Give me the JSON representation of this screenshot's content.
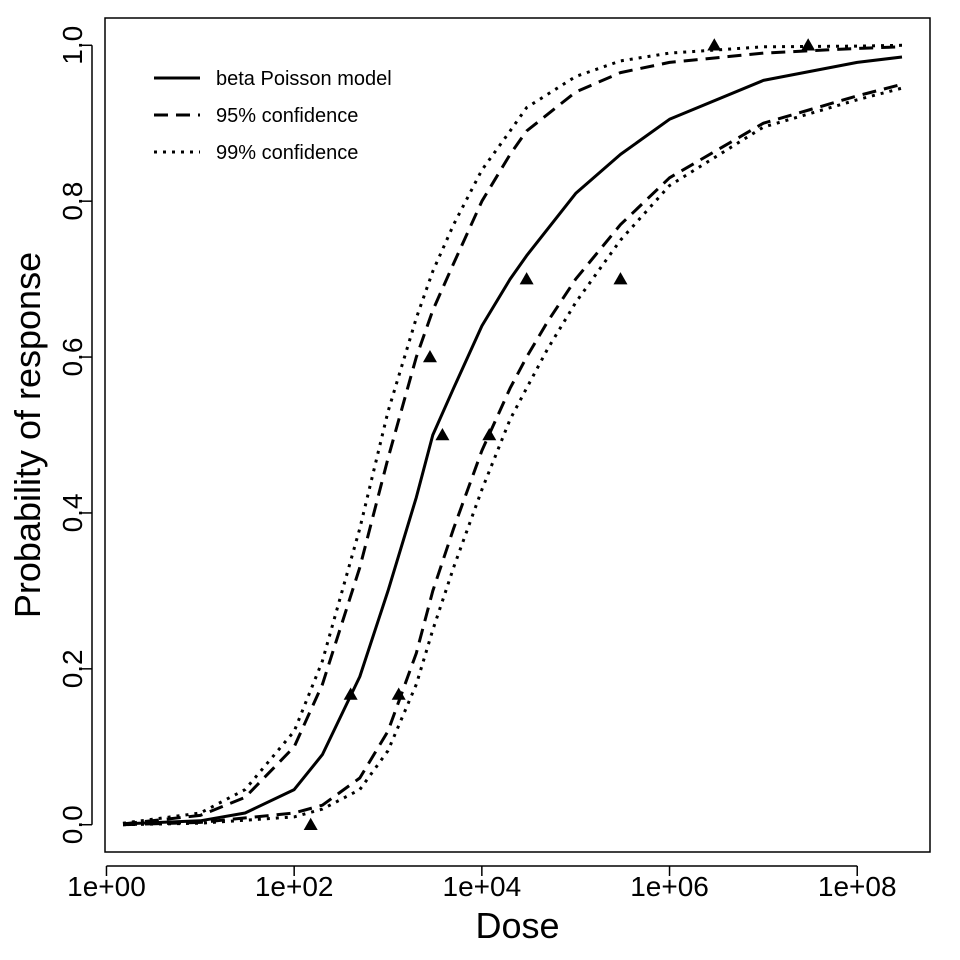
{
  "chart_data": {
    "type": "line",
    "title": "",
    "xlabel": "Dose",
    "ylabel": "Probability of response",
    "x_scale": "log10",
    "xlim": [
      1.5,
      300000000
    ],
    "ylim": [
      -0.035,
      1.035
    ],
    "x_ticks": [
      {
        "value": 1,
        "label": "1e+00"
      },
      {
        "value": 100,
        "label": "1e+02"
      },
      {
        "value": 10000,
        "label": "1e+04"
      },
      {
        "value": 1000000,
        "label": "1e+06"
      },
      {
        "value": 100000000,
        "label": "1e+08"
      }
    ],
    "y_ticks": [
      {
        "value": 0.0,
        "label": "0.0"
      },
      {
        "value": 0.2,
        "label": "0.2"
      },
      {
        "value": 0.4,
        "label": "0.4"
      },
      {
        "value": 0.6,
        "label": "0.6"
      },
      {
        "value": 0.8,
        "label": "0.8"
      },
      {
        "value": 1.0,
        "label": "1.0"
      }
    ],
    "grid": false,
    "legend_position": "top-left",
    "series": [
      {
        "name": "beta Poisson model",
        "style": "solid",
        "x": [
          1.5,
          10,
          30,
          100,
          200,
          500,
          1000,
          2000,
          3000,
          5000,
          10000,
          20000,
          30000,
          100000,
          300000,
          1000000,
          10000000,
          100000000,
          300000000
        ],
        "y": [
          0.001,
          0.005,
          0.015,
          0.045,
          0.09,
          0.19,
          0.3,
          0.42,
          0.5,
          0.56,
          0.64,
          0.7,
          0.73,
          0.81,
          0.86,
          0.905,
          0.955,
          0.978,
          0.985
        ]
      },
      {
        "name": "95% confidence",
        "style": "dashed",
        "x": [
          1.5,
          10,
          30,
          100,
          200,
          500,
          1000,
          2000,
          3000,
          5000,
          10000,
          20000,
          30000,
          100000,
          300000,
          1000000,
          10000000,
          100000000,
          300000000
        ],
        "y": [
          0.001,
          0.012,
          0.035,
          0.1,
          0.18,
          0.33,
          0.47,
          0.6,
          0.66,
          0.72,
          0.8,
          0.86,
          0.89,
          0.94,
          0.965,
          0.978,
          0.99,
          0.996,
          0.998
        ]
      },
      {
        "name": "",
        "style": "dashed",
        "x": [
          1.5,
          10,
          100,
          200,
          500,
          1000,
          2000,
          3000,
          5000,
          10000,
          20000,
          30000,
          50000,
          100000,
          300000,
          1000000,
          10000000,
          100000000,
          300000000
        ],
        "y": [
          0.0,
          0.003,
          0.015,
          0.025,
          0.06,
          0.12,
          0.22,
          0.3,
          0.38,
          0.48,
          0.56,
          0.6,
          0.645,
          0.7,
          0.77,
          0.83,
          0.9,
          0.935,
          0.95
        ]
      },
      {
        "name": "99% confidence",
        "style": "dotted",
        "x": [
          1.5,
          10,
          30,
          100,
          200,
          500,
          1000,
          2000,
          3000,
          5000,
          10000,
          20000,
          30000,
          100000,
          300000,
          1000000,
          10000000,
          100000000,
          300000000
        ],
        "y": [
          0.002,
          0.015,
          0.045,
          0.12,
          0.21,
          0.38,
          0.53,
          0.65,
          0.71,
          0.77,
          0.84,
          0.89,
          0.92,
          0.96,
          0.98,
          0.99,
          0.998,
          0.999,
          1.0
        ]
      },
      {
        "name": "",
        "style": "dotted",
        "x": [
          1.5,
          10,
          100,
          200,
          500,
          1000,
          2000,
          3000,
          5000,
          10000,
          20000,
          30000,
          50000,
          100000,
          300000,
          1000000,
          10000000,
          100000000,
          300000000
        ],
        "y": [
          0.0,
          0.002,
          0.01,
          0.02,
          0.045,
          0.095,
          0.18,
          0.25,
          0.33,
          0.43,
          0.52,
          0.56,
          0.61,
          0.67,
          0.75,
          0.82,
          0.895,
          0.93,
          0.945
        ]
      }
    ],
    "points": {
      "marker": "triangle",
      "x": [
        150,
        400,
        1300,
        2800,
        3800,
        12000,
        30000,
        300000,
        3000000,
        30000000
      ],
      "y": [
        0.0,
        0.167,
        0.167,
        0.6,
        0.5,
        0.5,
        0.7,
        0.7,
        1.0,
        1.0
      ]
    }
  }
}
